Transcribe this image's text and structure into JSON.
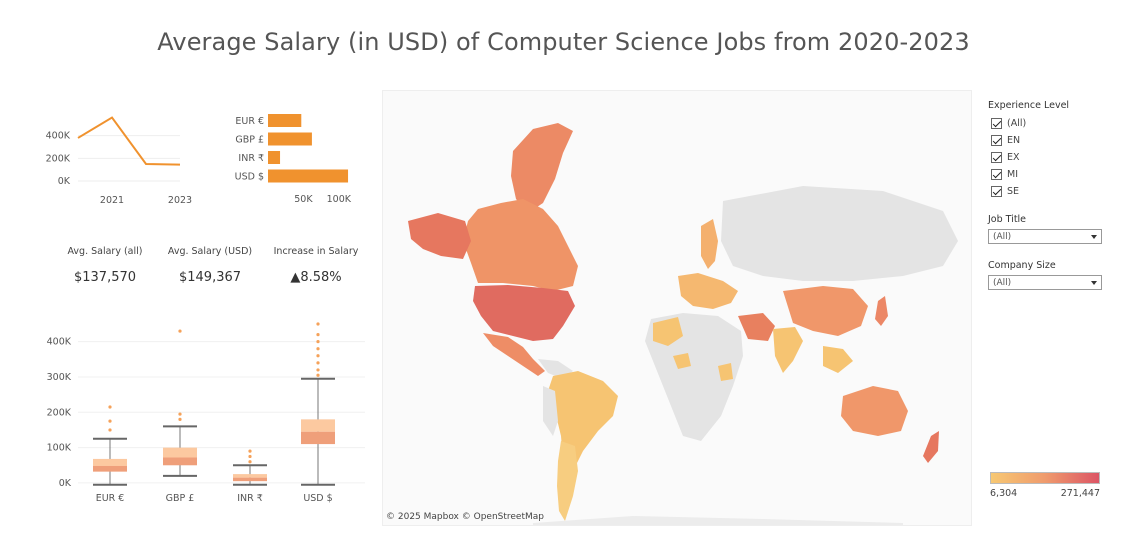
{
  "title": "Average Salary (in USD) of Computer Science Jobs from 2020-2023",
  "kpis": [
    {
      "label": "Avg. Salary (all)",
      "value": "$137,570"
    },
    {
      "label": "Avg. Salary (USD)",
      "value": "$149,367"
    },
    {
      "label": "Increase in Salary",
      "value": "▲8.58%"
    }
  ],
  "map": {
    "attribution": "© 2025 Mapbox  © OpenStreetMap"
  },
  "filters": {
    "experience": {
      "title": "Experience Level",
      "options": [
        "(All)",
        "EN",
        "EX",
        "MI",
        "SE"
      ]
    },
    "job_title": {
      "title": "Job Title",
      "value": "(All)"
    },
    "company_size": {
      "title": "Company Size",
      "value": "(All)"
    }
  },
  "legend": {
    "min": "6,304",
    "max": "271,447",
    "colors": [
      "#f7c873",
      "#ef9b6d",
      "#dc5565"
    ]
  },
  "colors": {
    "accent": "#f0922e"
  },
  "chart_data": [
    {
      "type": "line",
      "x": [
        2020,
        2021,
        2022,
        2023
      ],
      "values": [
        380000,
        560000,
        150000,
        145000
      ],
      "xticks": [
        "2021",
        "2023"
      ],
      "yticks": [
        "0K",
        "200K",
        "400K"
      ],
      "ylim": [
        0,
        600000
      ]
    },
    {
      "type": "bar",
      "orientation": "horizontal",
      "categories": [
        "EUR €",
        "GBP £",
        "INR ₹",
        "USD $"
      ],
      "values": [
        47000,
        62000,
        17000,
        113000
      ],
      "xticks": [
        "50K",
        "100K"
      ],
      "xlim": [
        0,
        120000
      ]
    },
    {
      "type": "box",
      "categories": [
        "EUR €",
        "GBP £",
        "INR ₹",
        "USD $"
      ],
      "yticks": [
        "0K",
        "100K",
        "200K",
        "300K",
        "400K"
      ],
      "ylim": [
        -20000,
        450000
      ],
      "boxes": [
        {
          "min": -5000,
          "q1": 32000,
          "median": 48000,
          "q3": 68000,
          "max": 125000,
          "outliers": [
            150000,
            175000,
            215000
          ]
        },
        {
          "min": 20000,
          "q1": 50000,
          "median": 72000,
          "q3": 100000,
          "max": 160000,
          "outliers": [
            180000,
            195000,
            430000
          ]
        },
        {
          "min": -5000,
          "q1": 5000,
          "median": 15000,
          "q3": 25000,
          "max": 50000,
          "outliers": [
            60000,
            75000,
            90000
          ]
        },
        {
          "min": -5000,
          "q1": 110000,
          "median": 145000,
          "q3": 180000,
          "max": 295000,
          "outliers": [
            305000,
            320000,
            340000,
            360000,
            380000,
            400000,
            420000,
            450000
          ]
        }
      ]
    }
  ]
}
